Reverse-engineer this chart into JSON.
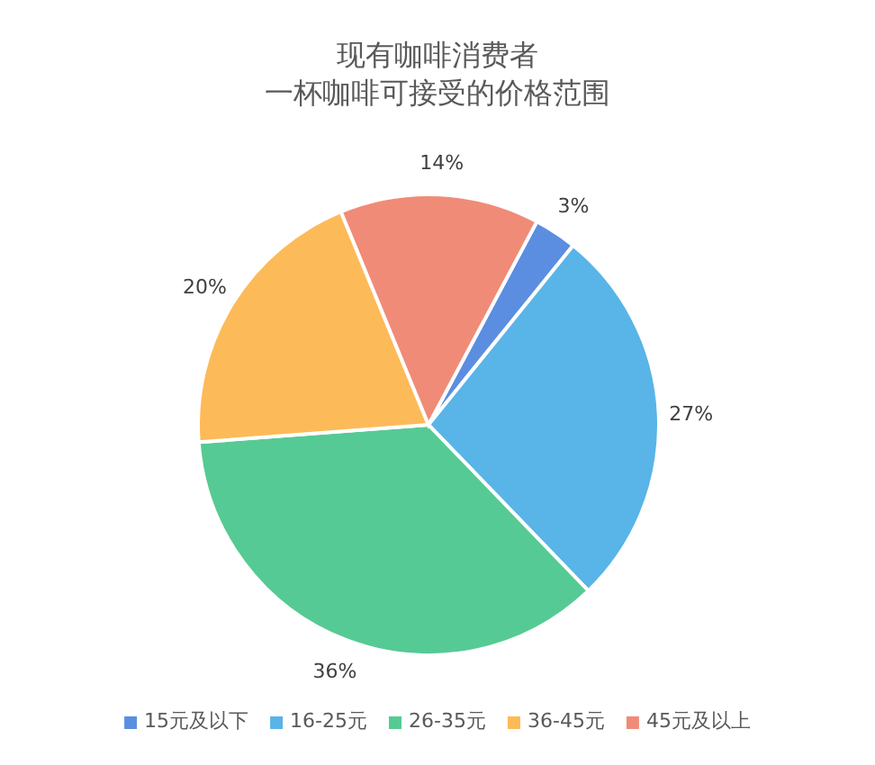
{
  "chart_data": {
    "type": "pie",
    "title": "现有咖啡消费者",
    "subtitle": "一杯咖啡可接受的价格范围",
    "categories": [
      "15元及以下",
      "16-25元",
      "26-35元",
      "36-45元",
      "45元及以上"
    ],
    "values": [
      3,
      27,
      36,
      20,
      14
    ],
    "colors": [
      "#5b8ee0",
      "#59b4e8",
      "#56ca94",
      "#fdba58",
      "#f08b77"
    ],
    "value_labels": [
      "3%",
      "27%",
      "36%",
      "20%",
      "14%"
    ],
    "legend": "bottom"
  }
}
